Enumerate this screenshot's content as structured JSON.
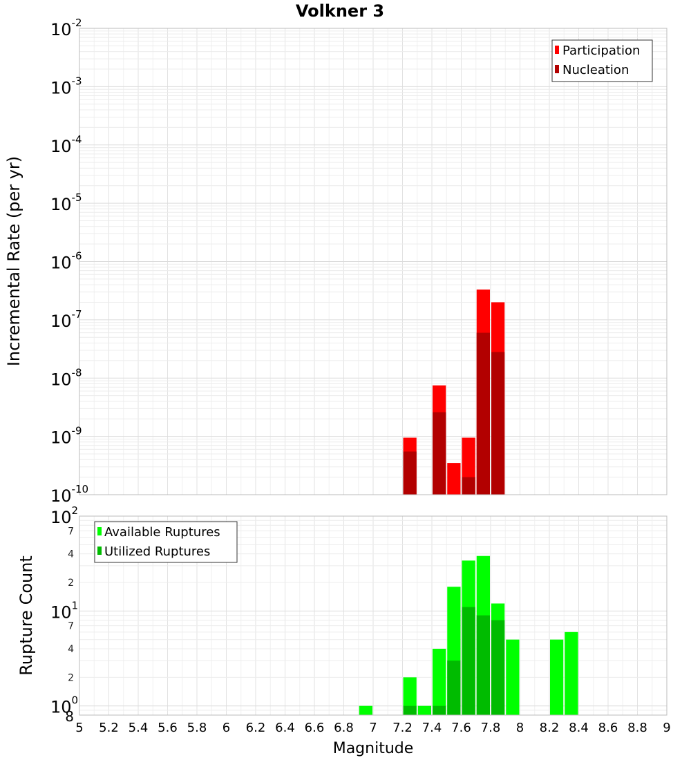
{
  "chart_data": [
    {
      "type": "bar",
      "title": "Volkner 3",
      "ylabel": "Incremental Rate (per yr)",
      "xlabel": "",
      "yscale": "log",
      "ylim": [
        1e-10,
        0.01
      ],
      "xlim": [
        5,
        9
      ],
      "grid": true,
      "legend_position": "top-right",
      "bar_width": 0.1,
      "series": [
        {
          "name": "Participation",
          "color": "#ff0000",
          "x": [
            7.25,
            7.45,
            7.55,
            7.65,
            7.75,
            7.85
          ],
          "values": [
            9.5e-10,
            7.5e-09,
            3.5e-10,
            9.5e-10,
            3.3e-07,
            2e-07
          ]
        },
        {
          "name": "Nucleation",
          "color": "#b20000",
          "x": [
            7.25,
            7.45,
            7.65,
            7.75,
            7.85
          ],
          "values": [
            5.5e-10,
            2.6e-09,
            2e-10,
            6e-08,
            2.8e-08
          ]
        }
      ]
    },
    {
      "type": "bar",
      "title": "",
      "ylabel": "Rupture Count",
      "xlabel": "Magnitude",
      "yscale": "log",
      "ylim": [
        0.8,
        100
      ],
      "xlim": [
        5,
        9
      ],
      "grid": true,
      "legend_position": "top-left",
      "bar_width": 0.1,
      "series": [
        {
          "name": "Available Ruptures",
          "color": "#00ff00",
          "x": [
            6.95,
            7.25,
            7.35,
            7.45,
            7.55,
            7.65,
            7.75,
            7.85,
            7.95,
            8.25,
            8.35
          ],
          "values": [
            1,
            2,
            1,
            4,
            18,
            34,
            38,
            12,
            5,
            5,
            6
          ]
        },
        {
          "name": "Utilized Ruptures",
          "color": "#00bb00",
          "x": [
            7.25,
            7.45,
            7.55,
            7.65,
            7.75,
            7.85
          ],
          "values": [
            1,
            1,
            3,
            11,
            9,
            8
          ]
        }
      ]
    }
  ],
  "axes": {
    "x_ticks": [
      "5",
      "5.2",
      "5.4",
      "5.6",
      "5.8",
      "6",
      "6.2",
      "6.4",
      "6.6",
      "6.8",
      "7",
      "7.2",
      "7.4",
      "7.6",
      "7.8",
      "8",
      "8.2",
      "8.4",
      "8.6",
      "8.8",
      "9"
    ],
    "top_y_ticks": [
      {
        "base": "10",
        "exp": "-2"
      },
      {
        "base": "10",
        "exp": "-3"
      },
      {
        "base": "10",
        "exp": "-4"
      },
      {
        "base": "10",
        "exp": "-5"
      },
      {
        "base": "10",
        "exp": "-6"
      },
      {
        "base": "10",
        "exp": "-7"
      },
      {
        "base": "10",
        "exp": "-8"
      },
      {
        "base": "10",
        "exp": "-9"
      },
      {
        "base": "10",
        "exp": "-10"
      }
    ],
    "bottom_y_major": [
      {
        "base": "10",
        "exp": "2"
      },
      {
        "base": "10",
        "exp": "1"
      },
      {
        "base": "10",
        "exp": "0"
      }
    ],
    "bottom_y_minor": [
      "7",
      "4",
      "2",
      "7",
      "4",
      "2",
      "8"
    ]
  }
}
